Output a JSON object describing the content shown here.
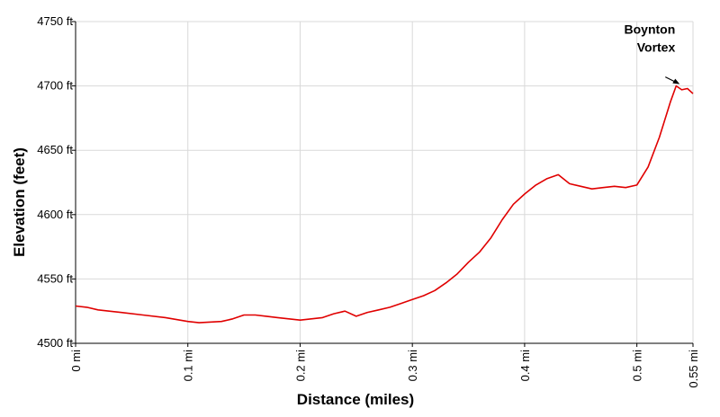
{
  "chart_data": {
    "type": "line",
    "title": "",
    "xlabel": "Distance (miles)",
    "ylabel": "Elevation (feet)",
    "xlim": [
      0,
      0.55
    ],
    "ylim": [
      4500,
      4750
    ],
    "grid": true,
    "x_ticks": [
      {
        "value": 0,
        "label": "0 mi"
      },
      {
        "value": 0.1,
        "label": "0.1 mi"
      },
      {
        "value": 0.2,
        "label": "0.2 mi"
      },
      {
        "value": 0.3,
        "label": "0.3 mi"
      },
      {
        "value": 0.4,
        "label": "0.4 mi"
      },
      {
        "value": 0.5,
        "label": "0.5 mi"
      },
      {
        "value": 0.55,
        "label": "0.55 mi"
      }
    ],
    "y_ticks": [
      {
        "value": 4500,
        "label": "4500 ft"
      },
      {
        "value": 4550,
        "label": "4550 ft"
      },
      {
        "value": 4600,
        "label": "4600 ft"
      },
      {
        "value": 4650,
        "label": "4650 ft"
      },
      {
        "value": 4700,
        "label": "4700 ft"
      },
      {
        "value": 4750,
        "label": "4750 ft"
      }
    ],
    "series": [
      {
        "color": "#e00000",
        "x": [
          0,
          0.01,
          0.02,
          0.04,
          0.06,
          0.08,
          0.1,
          0.11,
          0.13,
          0.14,
          0.15,
          0.16,
          0.17,
          0.18,
          0.19,
          0.2,
          0.21,
          0.22,
          0.23,
          0.24,
          0.25,
          0.26,
          0.27,
          0.28,
          0.29,
          0.3,
          0.31,
          0.32,
          0.33,
          0.34,
          0.35,
          0.36,
          0.37,
          0.38,
          0.39,
          0.4,
          0.41,
          0.42,
          0.43,
          0.44,
          0.45,
          0.46,
          0.47,
          0.48,
          0.49,
          0.5,
          0.51,
          0.52,
          0.53,
          0.535,
          0.54,
          0.545,
          0.55
        ],
        "y": [
          4529,
          4528,
          4526,
          4524,
          4522,
          4520,
          4517,
          4516,
          4517,
          4519,
          4522,
          4522,
          4521,
          4520,
          4519,
          4518,
          4519,
          4520,
          4523,
          4525,
          4521,
          4524,
          4526,
          4528,
          4531,
          4534,
          4537,
          4541,
          4547,
          4554,
          4563,
          4571,
          4582,
          4596,
          4608,
          4616,
          4623,
          4628,
          4631,
          4624,
          4622,
          4620,
          4621,
          4622,
          4621,
          4623,
          4637,
          4660,
          4688,
          4700,
          4697,
          4698,
          4694
        ]
      }
    ],
    "annotations": [
      {
        "text_lines": [
          "Boynton",
          "Vortex"
        ],
        "target_x": 0.539,
        "target_y": 4700
      }
    ]
  }
}
